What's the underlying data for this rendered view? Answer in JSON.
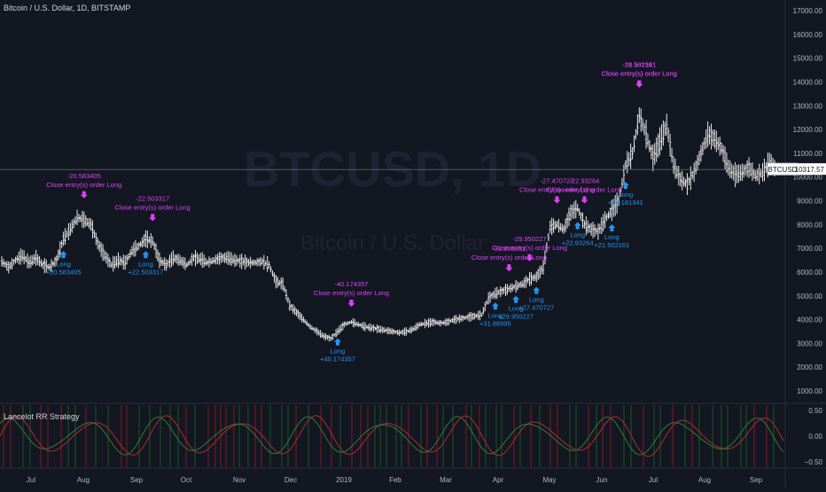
{
  "header": {
    "title": "Bitcoin / U.S. Dollar, 1D, BITSTAMP"
  },
  "watermark": {
    "symbol": "BTCUSD, 1D",
    "description": "Bitcoin / U.S. Dollar"
  },
  "indicator": {
    "title": "Lancelot RR Strategy",
    "y_ticks": [
      "0.50",
      "0.00",
      "−0.50"
    ]
  },
  "price_label": {
    "symbol": "BTCUSD",
    "value": "10317.57"
  },
  "colors": {
    "background": "#131722",
    "candle": "#e8e8e8",
    "long_marker": "#2196f3",
    "close_marker": "#e040fb",
    "grid": "#1e2230",
    "oscillator_red": "#b22833",
    "oscillator_green": "#2f7d32",
    "bar_red": "#8b1a22",
    "bar_green": "#1b5e20"
  },
  "chart_data": {
    "type": "line",
    "title": "Bitcoin / U.S. Dollar, 1D, BITSTAMP",
    "xlabel": "",
    "ylabel": "",
    "ylim": [
      0,
      17000
    ],
    "x_ticks": [
      "Jul",
      "Aug",
      "Sep",
      "Oct",
      "Nov",
      "Dec",
      "2019",
      "Feb",
      "Mar",
      "Apr",
      "May",
      "Jun",
      "Jul",
      "Aug",
      "Sep"
    ],
    "y_ticks": [
      "17000.00",
      "16000.00",
      "15000.00",
      "14000.00",
      "13000.00",
      "12000.00",
      "11000.00",
      "10000.00",
      "9000.00",
      "8000.00",
      "7000.00",
      "6000.00",
      "5000.00",
      "4000.00",
      "3000.00",
      "2000.00",
      "1000.00"
    ],
    "series": [
      {
        "values": [
          6450,
          6200,
          6500,
          6700,
          6400,
          6600,
          6300,
          6200,
          6500,
          7400,
          7800,
          8300,
          8200,
          8000,
          7200,
          6700,
          6300,
          6500,
          6400,
          6900,
          7100,
          7400,
          7300,
          6500,
          6300,
          6600,
          6500,
          6300,
          6600,
          6550,
          6400,
          6500,
          6600,
          6600,
          6500,
          6450,
          6400,
          6400,
          6450,
          6300,
          5600,
          5500,
          4600,
          4300,
          4000,
          3700,
          3500,
          3300,
          3200,
          3500,
          3800,
          3900,
          3800,
          3700,
          3650,
          3600,
          3550,
          3500,
          3450,
          3500,
          3600,
          3800,
          3850,
          3900,
          3850,
          3900,
          4000,
          4050,
          4100,
          4150,
          4200,
          4900,
          5100,
          5200,
          5300,
          5400,
          5500,
          5700,
          5800,
          6200,
          7900,
          8000,
          7800,
          8500,
          8700,
          8000,
          7800,
          7700,
          8200,
          8600,
          9000,
          10500,
          11000,
          12600,
          11800,
          10800,
          11500,
          12200,
          10500,
          9900,
          9700,
          10200,
          11000,
          11800,
          11600,
          11200,
          10400,
          10100,
          10200,
          10400,
          10050,
          10200,
          10600,
          10300
        ]
      }
    ],
    "annotations": [
      {
        "kind": "close",
        "pnl": "-20.583405",
        "label": "Close entry(s) order Long",
        "at": 12
      },
      {
        "kind": "long",
        "label": "Long",
        "pnl": "+20.583405",
        "at": 9
      },
      {
        "kind": "close",
        "pnl": "-22.503317",
        "label": "Close entry(s) order Long",
        "at": 22
      },
      {
        "kind": "long",
        "label": "Long",
        "pnl": "+22.503317",
        "at": 21
      },
      {
        "kind": "close",
        "pnl": "-40.174357",
        "label": "Close entry(s) order Long",
        "at": 51
      },
      {
        "kind": "long",
        "label": "Long",
        "pnl": "+40.174357",
        "at": 49
      },
      {
        "kind": "close",
        "pnl": "-31.889951",
        "label": "Close entry(s) order Long",
        "at": 74
      },
      {
        "kind": "long",
        "label": "Long",
        "pnl": "+31.88995",
        "at": 72
      },
      {
        "kind": "close",
        "pnl": "-29.950227",
        "label": "Close entry(s) order Long",
        "at": 77
      },
      {
        "kind": "long",
        "label": "Long",
        "pnl": "+29.950227",
        "at": 75
      },
      {
        "kind": "long",
        "label": "Long",
        "pnl": "+27.470727",
        "at": 78
      },
      {
        "kind": "close",
        "pnl": "-27.470727",
        "label": "Close entry(s) order Long",
        "at": 81
      },
      {
        "kind": "close",
        "pnl": "-22.93264",
        "label": "Close entry(s) order Long",
        "at": 85
      },
      {
        "kind": "long",
        "label": "Long",
        "pnl": "+22.93264",
        "at": 84
      },
      {
        "kind": "long",
        "label": "Long",
        "pnl": "+21.502161",
        "at": 89
      },
      {
        "kind": "long",
        "label": "Long",
        "pnl": "+18.181341",
        "at": 91
      },
      {
        "kind": "close",
        "pnl": "-21.502161",
        "label": "Close entry(s) order Long",
        "at": 93
      },
      {
        "kind": "close",
        "pnl": "-18.181341",
        "label": "Close entry(s) order Long",
        "at": 93
      }
    ],
    "grid": false,
    "legend": "none"
  }
}
